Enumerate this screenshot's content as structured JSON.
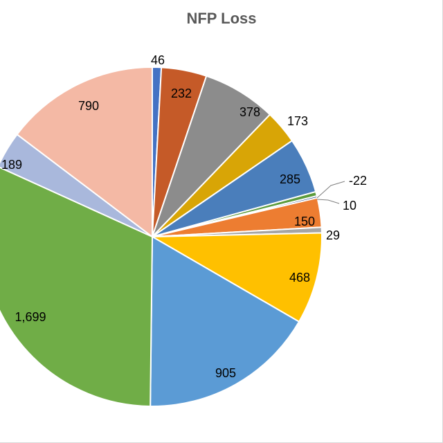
{
  "chart_data": {
    "type": "pie",
    "title": "NFP Loss",
    "start_angle_deg": 0,
    "direction": "clockwise",
    "legend": "none",
    "slices": [
      {
        "value": 46,
        "label": "46",
        "color": "#4472C4"
      },
      {
        "value": 232,
        "label": "232",
        "color": "#C55A28"
      },
      {
        "value": 378,
        "label": "378",
        "color": "#8C8C8C"
      },
      {
        "value": 173,
        "label": "173",
        "color": "#D8A506"
      },
      {
        "value": 285,
        "label": "285",
        "color": "#4A7EBB"
      },
      {
        "value": 22,
        "label": "-22",
        "color": "#5B9B3C"
      },
      {
        "value": 10,
        "label": "10",
        "color": "#274A86"
      },
      {
        "value": 150,
        "label": "150",
        "color": "#ED7D31"
      },
      {
        "value": 29,
        "label": "29",
        "color": "#A5A5A5"
      },
      {
        "value": 468,
        "label": "468",
        "color": "#FFC000"
      },
      {
        "value": 905,
        "label": "905",
        "color": "#5B9BD5"
      },
      {
        "value": 1699,
        "label": "1,699",
        "color": "#70AD47"
      },
      {
        "value": 189,
        "label": "189",
        "color": "#A9B8DC"
      },
      {
        "value": 790,
        "label": "790",
        "color": "#F4B9A5"
      }
    ]
  }
}
